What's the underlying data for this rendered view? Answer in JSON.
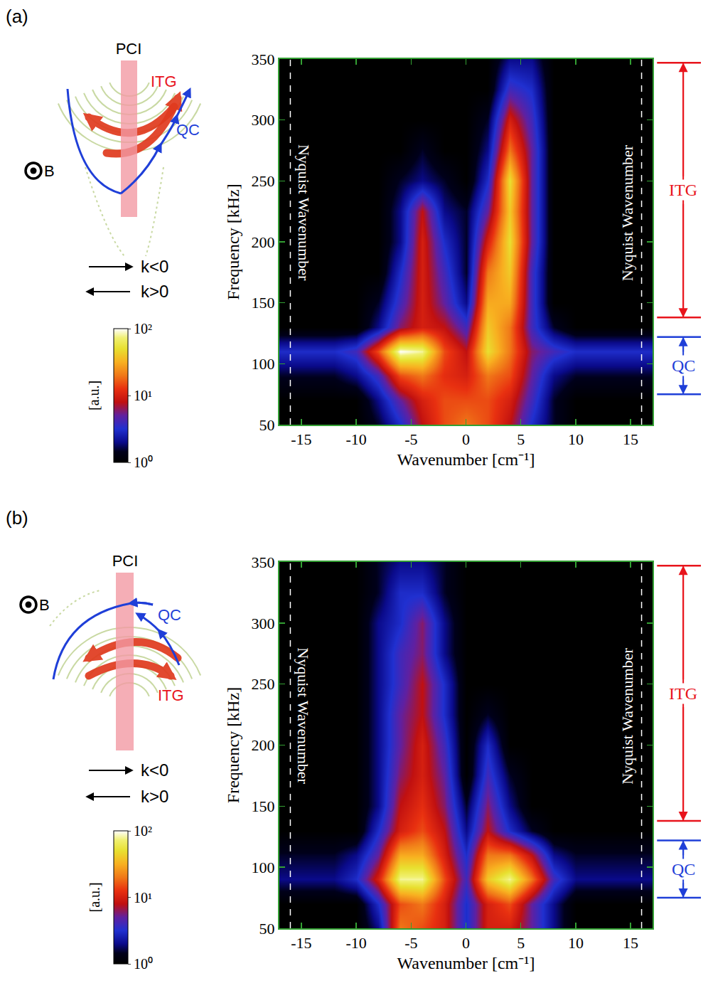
{
  "chart_data": [
    {
      "type": "heatmap",
      "panel": "(a)",
      "x_label": "Wavenumber [cm⁻¹]",
      "y_label": "Frequency [kHz]",
      "xlim": [
        -17,
        17
      ],
      "xticks": [
        -15,
        -10,
        -5,
        0,
        5,
        10,
        15
      ],
      "ylim": [
        50,
        350
      ],
      "yticks": [
        50,
        100,
        150,
        200,
        250,
        300,
        350
      ],
      "x": [
        -16,
        -14,
        -12,
        -10,
        -8,
        -6,
        -4,
        -2,
        0,
        2,
        4,
        6,
        8,
        10,
        12,
        14,
        16
      ],
      "y": [
        50,
        70,
        90,
        110,
        130,
        150,
        175,
        200,
        225,
        250,
        275,
        300,
        325,
        350
      ],
      "z": [
        [
          1,
          1,
          1,
          1,
          1.5,
          3,
          8,
          15,
          20,
          15,
          8,
          3,
          1.5,
          1,
          1,
          1,
          1
        ],
        [
          1,
          1,
          1,
          1,
          2,
          5,
          10,
          15,
          15,
          15,
          10,
          4,
          1.5,
          1,
          1,
          1,
          1
        ],
        [
          1.5,
          1.5,
          1.5,
          2,
          4,
          15,
          20,
          12,
          10,
          20,
          15,
          5,
          2,
          1.5,
          1.5,
          1.5,
          1.5
        ],
        [
          3,
          3,
          3,
          4,
          15,
          100,
          80,
          15,
          8,
          50,
          20,
          6,
          4,
          3,
          3,
          3,
          3
        ],
        [
          1,
          1,
          1,
          1,
          2,
          6,
          10,
          8,
          4,
          40,
          20,
          4,
          1.5,
          1,
          1,
          1,
          1
        ],
        [
          1,
          1,
          1,
          1,
          1.5,
          4,
          10,
          5,
          2,
          30,
          30,
          4,
          1,
          1,
          1,
          1,
          1
        ],
        [
          1,
          1,
          1,
          1,
          1,
          3,
          10,
          4,
          1.5,
          20,
          40,
          4,
          1,
          1,
          1,
          1,
          1
        ],
        [
          1,
          1,
          1,
          1,
          1,
          2,
          10,
          3,
          1.5,
          10,
          50,
          5,
          1,
          1,
          1,
          1,
          1
        ],
        [
          1,
          1,
          1,
          1,
          1,
          2,
          8,
          2,
          1.5,
          5,
          40,
          5,
          1,
          1,
          1,
          1,
          1
        ],
        [
          1,
          1,
          1,
          1,
          1,
          1.5,
          2,
          1.5,
          1,
          3,
          50,
          5,
          1,
          1,
          1,
          1,
          1
        ],
        [
          1,
          1,
          1,
          1,
          1,
          1,
          1.5,
          1,
          1,
          2,
          20,
          5,
          1,
          1,
          1,
          1,
          1
        ],
        [
          1,
          1,
          1,
          1,
          1,
          1,
          1,
          1,
          1,
          1.5,
          10,
          4,
          1,
          1,
          1,
          1,
          1
        ],
        [
          1,
          1,
          1,
          1,
          1,
          1,
          1,
          1,
          1,
          1,
          4,
          3,
          1,
          1,
          1,
          1,
          1
        ],
        [
          1,
          1,
          1,
          1,
          1,
          1,
          1,
          1,
          1,
          1,
          2,
          2,
          1,
          1,
          1,
          1,
          1
        ]
      ],
      "colorbar": {
        "title": "[a.u.]",
        "log": true,
        "range": [
          1,
          100
        ],
        "ticks": [
          {
            "value": 1,
            "label": "10⁰"
          },
          {
            "value": 10,
            "label": "10¹"
          },
          {
            "value": 100,
            "label": "10²"
          }
        ]
      },
      "nyquist": {
        "label": "Nyquist Wavenumber",
        "x": [
          -16,
          16
        ]
      },
      "bands": [
        {
          "label": "ITG",
          "range": [
            138,
            347
          ],
          "color": "#e8141c"
        },
        {
          "label": "QC",
          "range": [
            75,
            122
          ],
          "color": "#1f3fd8"
        }
      ],
      "diagram": {
        "instrument": "PCI",
        "itg": "ITG",
        "qc": "QC",
        "field": "B",
        "k_neg": "k<0",
        "k_pos": "k>0"
      }
    },
    {
      "type": "heatmap",
      "panel": "(b)",
      "x_label": "Wavenumber [cm⁻¹]",
      "y_label": "Frequency [kHz]",
      "xlim": [
        -17,
        17
      ],
      "xticks": [
        -15,
        -10,
        -5,
        0,
        5,
        10,
        15
      ],
      "ylim": [
        50,
        350
      ],
      "yticks": [
        50,
        100,
        150,
        200,
        250,
        300,
        350
      ],
      "x": [
        -16,
        -14,
        -12,
        -10,
        -8,
        -6,
        -4,
        -2,
        0,
        2,
        4,
        6,
        8,
        10,
        12,
        14,
        16
      ],
      "y": [
        50,
        70,
        90,
        110,
        130,
        150,
        175,
        200,
        225,
        250,
        275,
        300,
        325,
        350
      ],
      "z": [
        [
          1,
          1,
          1,
          1,
          2,
          20,
          15,
          10,
          3,
          10,
          10,
          5,
          2,
          1,
          1,
          1,
          1
        ],
        [
          1,
          1,
          1,
          1,
          3,
          15,
          20,
          10,
          3,
          10,
          15,
          5,
          2,
          1,
          1,
          1,
          1
        ],
        [
          2,
          2,
          2,
          3,
          10,
          80,
          80,
          15,
          4,
          40,
          80,
          20,
          4,
          2,
          2,
          2,
          2
        ],
        [
          1.5,
          1.5,
          1.5,
          2,
          5,
          30,
          30,
          10,
          3,
          20,
          20,
          8,
          2,
          1.5,
          1.5,
          1.5,
          1.5
        ],
        [
          1,
          1,
          1,
          1,
          3,
          10,
          15,
          8,
          2,
          8,
          3,
          1.5,
          1,
          1,
          1,
          1,
          1
        ],
        [
          1,
          1,
          1,
          1,
          2,
          8,
          12,
          6,
          1.5,
          6,
          2,
          1,
          1,
          1,
          1,
          1,
          1
        ],
        [
          1,
          1,
          1,
          1,
          2,
          6,
          10,
          5,
          1,
          4,
          1.5,
          1,
          1,
          1,
          1,
          1,
          1
        ],
        [
          1,
          1,
          1,
          1,
          2,
          5,
          10,
          4,
          1,
          3,
          1,
          1,
          1,
          1,
          1,
          1,
          1
        ],
        [
          1,
          1,
          1,
          1,
          2,
          5,
          8,
          3,
          1,
          1.5,
          1,
          1,
          1,
          1,
          1,
          1,
          1
        ],
        [
          1,
          1,
          1,
          1,
          2,
          4,
          8,
          3,
          1,
          1,
          1,
          1,
          1,
          1,
          1,
          1,
          1
        ],
        [
          1,
          1,
          1,
          1,
          2,
          4,
          6,
          2,
          1,
          1,
          1,
          1,
          1,
          1,
          1,
          1,
          1
        ],
        [
          1,
          1,
          1,
          1,
          2,
          3,
          6,
          2,
          1,
          1,
          1,
          1,
          1,
          1,
          1,
          1,
          1
        ],
        [
          1,
          1,
          1,
          1,
          1.5,
          3,
          3,
          1.5,
          1,
          1,
          1,
          1,
          1,
          1,
          1,
          1,
          1
        ],
        [
          1,
          1,
          1,
          1,
          1.5,
          2,
          2,
          1.5,
          1,
          1,
          1,
          1,
          1,
          1,
          1,
          1,
          1
        ]
      ],
      "colorbar": {
        "title": "[a.u.]",
        "log": true,
        "range": [
          1,
          100
        ],
        "ticks": [
          {
            "value": 1,
            "label": "10⁰"
          },
          {
            "value": 10,
            "label": "10¹"
          },
          {
            "value": 100,
            "label": "10²"
          }
        ]
      },
      "nyquist": {
        "label": "Nyquist Wavenumber",
        "x": [
          -16,
          16
        ]
      },
      "bands": [
        {
          "label": "ITG",
          "range": [
            138,
            347
          ],
          "color": "#e8141c"
        },
        {
          "label": "QC",
          "range": [
            75,
            122
          ],
          "color": "#1f3fd8"
        }
      ],
      "diagram": {
        "instrument": "PCI",
        "itg": "ITG",
        "qc": "QC",
        "field": "B",
        "k_neg": "k<0",
        "k_pos": "k>0"
      }
    }
  ]
}
